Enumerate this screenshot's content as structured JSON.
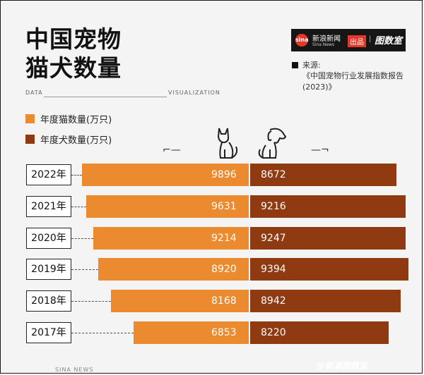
{
  "title_line1": "中国宠物",
  "title_line2": "猫犬数量",
  "data_label": "DATA",
  "vis_label": "VISUALIZATION",
  "brand": {
    "logo_text": "sina",
    "cn": "新浪新闻",
    "en": "Sina News",
    "badge": "出品",
    "sep": "|",
    "name": "图数室"
  },
  "source_label": "来源:",
  "source_text": "《中国宠物行业发展指数报告(2023)》",
  "footer_left": "SINA NEWS",
  "footer_right": "@新浪图数室",
  "colors": {
    "cat": "#ec8a2f",
    "dog": "#8f3a10"
  },
  "icons": {
    "cat": "cat-icon",
    "dog": "dog-icon"
  },
  "chart_data": {
    "type": "bar",
    "layout": "diverging-horizontal",
    "categories": [
      "2022年",
      "2021年",
      "2020年",
      "2019年",
      "2018年",
      "2017年"
    ],
    "series": [
      {
        "name": "年度猫数量(万只)",
        "values": [
          9896,
          9631,
          9214,
          8920,
          8168,
          6853
        ]
      },
      {
        "name": "年度犬数量(万只)",
        "values": [
          8672,
          9216,
          9247,
          9394,
          8942,
          8220
        ]
      }
    ]
  }
}
